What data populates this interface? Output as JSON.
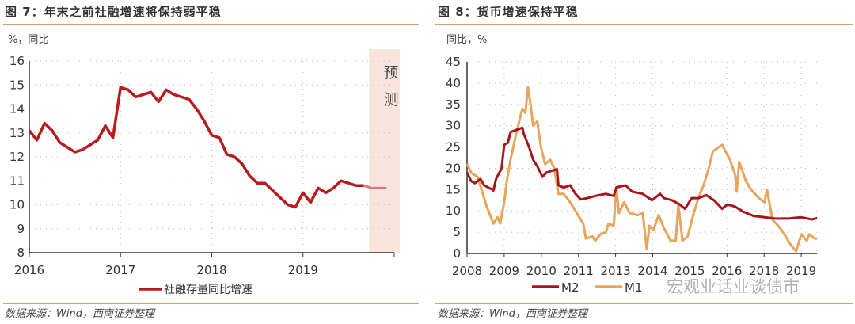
{
  "figures": [
    {
      "title": "图 7：年末之前社融增速将保持弱平稳",
      "source": "数据来源：Wind，西南证券整理"
    },
    {
      "title": "图 8：货币增速保持平稳",
      "source": "数据来源：Wind，西南证券整理"
    }
  ],
  "watermark": "宏观业话业谈债市",
  "chart_data": [
    {
      "type": "line",
      "unit_label": "%，同比",
      "xlim": [
        2016,
        2020
      ],
      "ylim": [
        8,
        16
      ],
      "x_ticks": [
        "2016",
        "2017",
        "2018",
        "2019"
      ],
      "y_ticks": [
        8,
        9,
        10,
        11,
        12,
        13,
        14,
        15,
        16
      ],
      "grid": true,
      "legend_position": "bottom",
      "forecast_label": "预测",
      "forecast_region": [
        "2019-10",
        "2019-12"
      ],
      "series": [
        {
          "name": "社融存量同比增速",
          "color": "#b81a1e",
          "x": [
            "2016-01",
            "2016-02",
            "2016-03",
            "2016-04",
            "2016-05",
            "2016-06",
            "2016-07",
            "2016-08",
            "2016-09",
            "2016-10",
            "2016-11",
            "2016-12",
            "2017-01",
            "2017-02",
            "2017-03",
            "2017-04",
            "2017-05",
            "2017-06",
            "2017-07",
            "2017-08",
            "2017-09",
            "2017-10",
            "2017-11",
            "2017-12",
            "2018-01",
            "2018-02",
            "2018-03",
            "2018-04",
            "2018-05",
            "2018-06",
            "2018-07",
            "2018-08",
            "2018-09",
            "2018-10",
            "2018-11",
            "2018-12",
            "2019-01",
            "2019-02",
            "2019-03",
            "2019-04",
            "2019-05",
            "2019-06",
            "2019-07",
            "2019-08",
            "2019-09"
          ],
          "values": [
            13.1,
            12.7,
            13.4,
            13.1,
            12.6,
            12.4,
            12.2,
            12.3,
            12.5,
            12.7,
            13.3,
            12.8,
            14.9,
            14.8,
            14.5,
            14.6,
            14.7,
            14.3,
            14.8,
            14.6,
            14.5,
            14.4,
            14.0,
            13.5,
            12.9,
            12.8,
            12.1,
            12.0,
            11.7,
            11.2,
            10.9,
            10.9,
            10.6,
            10.3,
            10.0,
            9.9,
            10.5,
            10.1,
            10.7,
            10.5,
            10.7,
            11.0,
            10.9,
            10.8,
            10.8
          ]
        },
        {
          "name": "forecast",
          "color": "#d9787a",
          "x": [
            "2019-09",
            "2019-10",
            "2019-11",
            "2019-12"
          ],
          "values": [
            10.8,
            10.7,
            10.7,
            10.7
          ]
        }
      ]
    },
    {
      "type": "line",
      "unit_label": "同比，%",
      "ylim": [
        0,
        45
      ],
      "x_ticks": [
        "2008",
        "2009",
        "2010",
        "2011",
        "2013",
        "2014",
        "2015",
        "2016",
        "2018",
        "2019"
      ],
      "xlim_tick_index": [
        0,
        9.43
      ],
      "y_ticks": [
        0,
        5,
        10,
        15,
        20,
        25,
        30,
        35,
        40,
        45
      ],
      "grid": true,
      "legend_position": "bottom",
      "series": [
        {
          "name": "M2",
          "color": "#a8141c",
          "x": [
            0,
            0.11,
            0.21,
            0.36,
            0.46,
            0.68,
            0.71,
            0.78,
            0.93,
            1.0,
            1.1,
            1.17,
            1.32,
            1.49,
            1.53,
            1.67,
            1.78,
            1.89,
            2.03,
            2.14,
            2.31,
            2.42,
            2.46,
            2.6,
            2.78,
            2.92,
            3.06,
            3.24,
            3.45,
            3.74,
            3.95,
            4.02,
            4.27,
            4.45,
            4.73,
            4.98,
            5.2,
            5.3,
            5.52,
            5.73,
            5.87,
            6.05,
            6.23,
            6.44,
            6.65,
            6.87,
            7.01,
            7.22,
            7.44,
            7.72,
            8.01,
            8.29,
            8.65,
            9.0,
            9.29,
            9.43
          ],
          "values": [
            19,
            17,
            16.5,
            17.5,
            16,
            15,
            14.8,
            17.5,
            20,
            25.5,
            26,
            28.5,
            29,
            29.5,
            28,
            25,
            22,
            20.5,
            18,
            19,
            19.5,
            19.8,
            16,
            15.5,
            16,
            14,
            12.7,
            13,
            13.5,
            14,
            13.5,
            15.5,
            16,
            14.5,
            14,
            12.5,
            14,
            13,
            12.5,
            11.5,
            10.5,
            13,
            13,
            13.7,
            12.5,
            10.5,
            11.5,
            11,
            9.8,
            8.8,
            8.5,
            8.2,
            8.2,
            8.5,
            8,
            8.3
          ]
        },
        {
          "name": "M1",
          "color": "#e6a55a",
          "x": [
            0,
            0.11,
            0.28,
            0.39,
            0.53,
            0.71,
            0.82,
            0.89,
            1.0,
            1.07,
            1.17,
            1.32,
            1.49,
            1.57,
            1.64,
            1.71,
            1.78,
            1.89,
            1.99,
            2.1,
            2.24,
            2.35,
            2.46,
            2.6,
            2.74,
            2.92,
            3.13,
            3.2,
            3.38,
            3.45,
            3.59,
            3.74,
            3.81,
            3.95,
            4.02,
            4.09,
            4.23,
            4.38,
            4.59,
            4.73,
            4.84,
            4.91,
            5.02,
            5.16,
            5.3,
            5.48,
            5.62,
            5.69,
            5.8,
            5.94,
            6.09,
            6.23,
            6.37,
            6.51,
            6.62,
            6.87,
            7.08,
            7.22,
            7.26,
            7.33,
            7.51,
            7.65,
            7.86,
            8.01,
            8.08,
            8.22,
            8.43,
            8.58,
            8.72,
            8.86,
            9.0,
            9.15,
            9.22,
            9.36,
            9.43
          ],
          "values": [
            21,
            19,
            18,
            15,
            11,
            7,
            8.5,
            7,
            12,
            17,
            22,
            28,
            34,
            33,
            39,
            35,
            30,
            31,
            25,
            21,
            22,
            20,
            14,
            14,
            12.5,
            10,
            7,
            3.5,
            4,
            3,
            4.5,
            5,
            7,
            6.5,
            15.5,
            9.5,
            12,
            9.5,
            9,
            9.5,
            1,
            6.5,
            5.5,
            9,
            6,
            3,
            3,
            11.5,
            3,
            4,
            9,
            13,
            16,
            20,
            24,
            25.5,
            22,
            18.5,
            14.5,
            21.5,
            17,
            15,
            13,
            12,
            15,
            8,
            6,
            4,
            2,
            0.5,
            4.5,
            3,
            4.5,
            3.5,
            3.5
          ]
        }
      ]
    }
  ]
}
